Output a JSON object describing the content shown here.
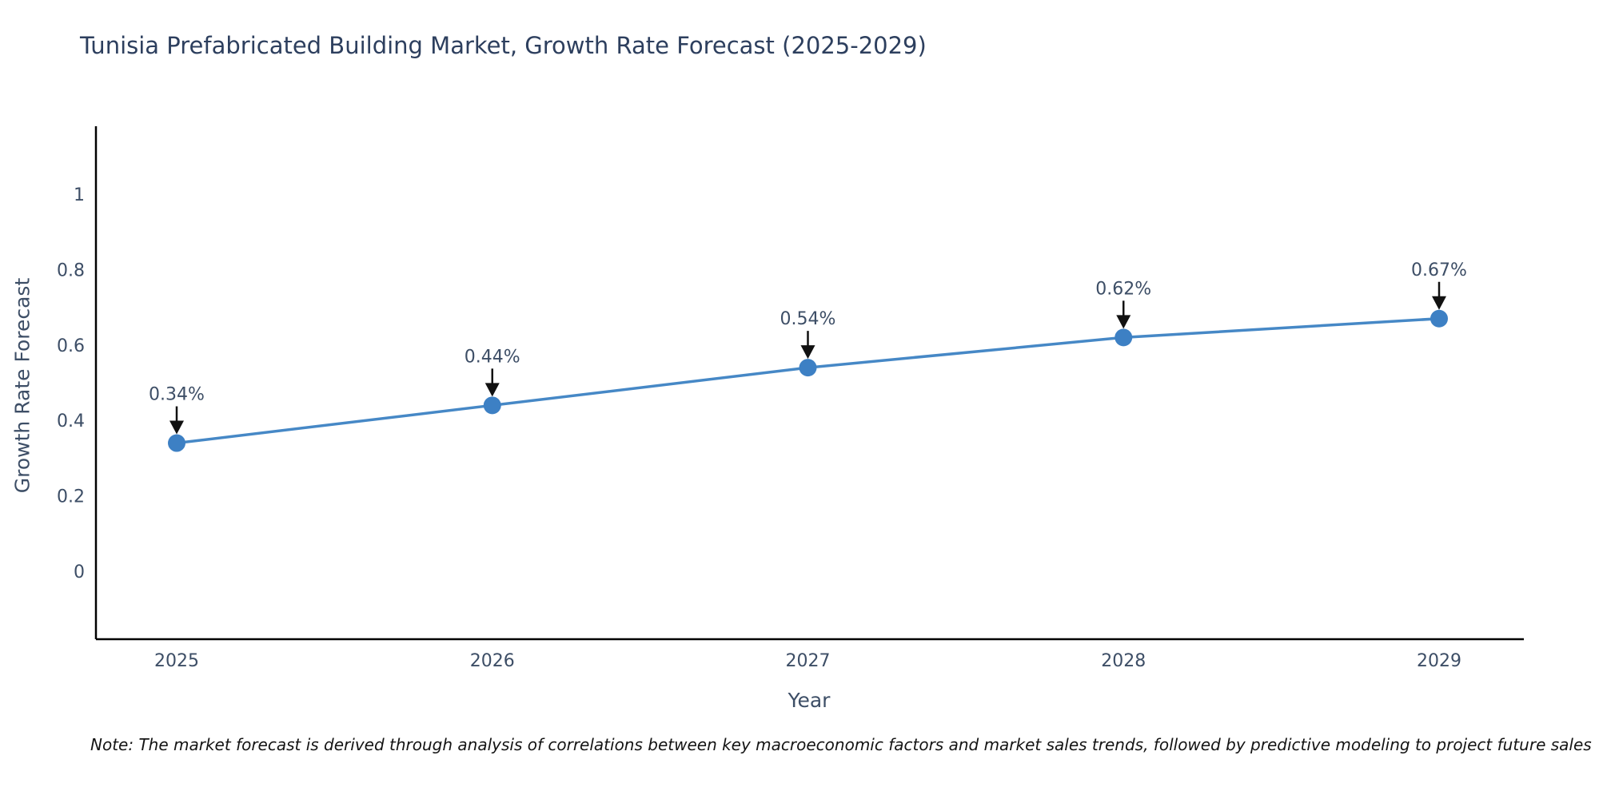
{
  "note": "Note: The market forecast is derived through analysis of correlations between key macroeconomic factors and market sales trends, followed by predictive modeling to project future sales",
  "chart_data": {
    "type": "line",
    "title": "Tunisia Prefabricated Building Market, Growth Rate Forecast (2025-2029)",
    "xlabel": "Year",
    "ylabel": "Growth Rate Forecast",
    "x": [
      2025,
      2026,
      2027,
      2028,
      2029
    ],
    "series": [
      {
        "name": "Growth Rate Forecast",
        "values": [
          0.34,
          0.44,
          0.54,
          0.62,
          0.67
        ]
      }
    ],
    "point_labels": [
      "0.34%",
      "0.44%",
      "0.54%",
      "0.62%",
      "0.67%"
    ],
    "x_tick_labels": [
      "2025",
      "2026",
      "2027",
      "2028",
      "2029"
    ],
    "y_ticks": [
      0,
      0.2,
      0.4,
      0.6,
      0.8,
      1
    ],
    "y_tick_labels": [
      "0",
      "0.2",
      "0.4",
      "0.6",
      "0.8",
      "1"
    ],
    "ylim": [
      -0.18,
      1.18
    ],
    "grid": false,
    "legend": "none",
    "line_shape": "linear",
    "colors": {
      "line": "#4688c6",
      "marker": "#3d80c4",
      "axis_line": "#000000",
      "tick_text": "#3d4e66",
      "annotation_text": "#3d4e66",
      "annotation_arrow": "#111111",
      "title_text": "#2d3f5e",
      "background": "#ffffff"
    }
  }
}
